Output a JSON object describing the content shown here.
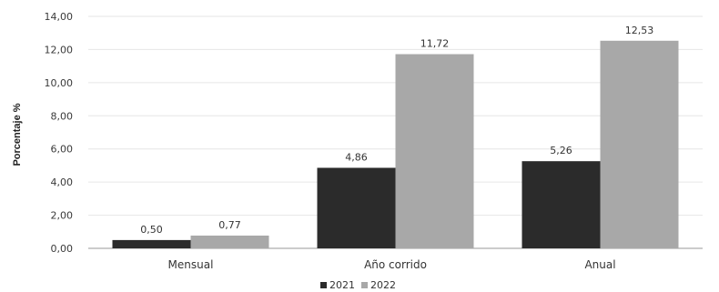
{
  "chart_data": {
    "type": "bar",
    "categories": [
      "Mensual",
      "Año corrido",
      "Anual"
    ],
    "series": [
      {
        "name": "2021",
        "values": [
          0.5,
          4.86,
          5.26
        ],
        "labels": [
          "0,50",
          "4,86",
          "5,26"
        ],
        "color": "#2b2b2b"
      },
      {
        "name": "2022",
        "values": [
          0.77,
          11.72,
          12.53
        ],
        "labels": [
          "0,77",
          "11,72",
          "12,53"
        ],
        "color": "#a8a8a8"
      }
    ],
    "ylabel": "Porcentaje %",
    "ylim": [
      0,
      14
    ],
    "yticks": [
      0,
      2,
      4,
      6,
      8,
      10,
      12,
      14
    ],
    "yticklabels": [
      "0,00",
      "2,00",
      "4,00",
      "6,00",
      "8,00",
      "10,00",
      "12,00",
      "14,00"
    ],
    "grid": true,
    "legend_position": "bottom-center"
  }
}
